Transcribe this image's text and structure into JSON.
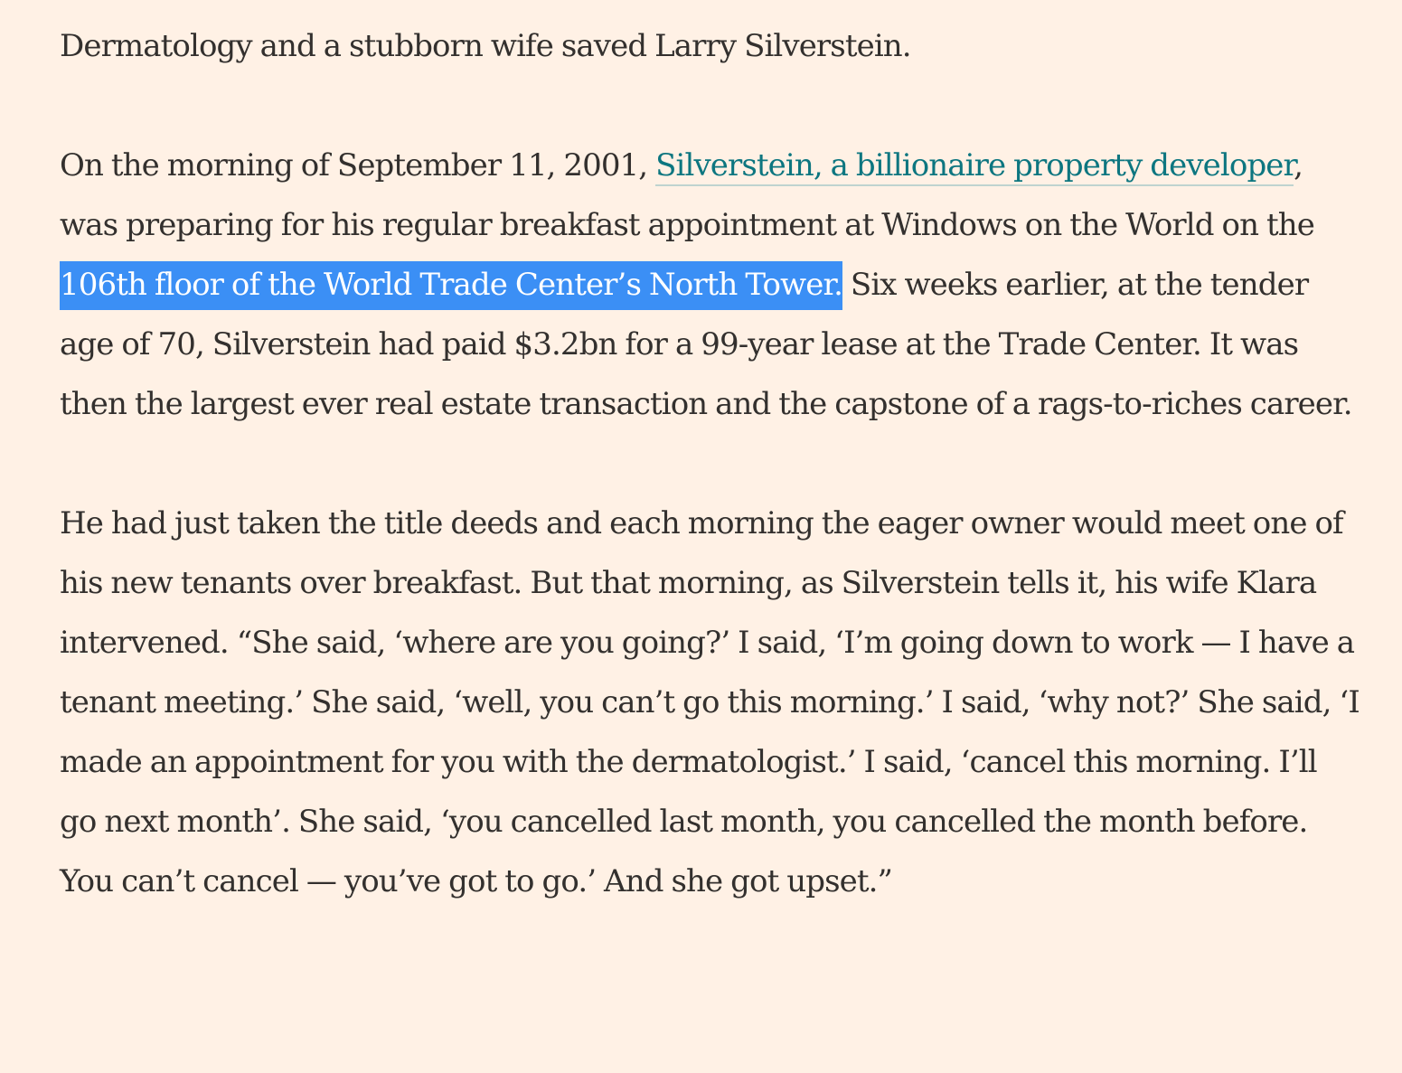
{
  "article": {
    "paragraph_1": {
      "text": "Dermatology and a stubborn wife saved Larry Silverstein."
    },
    "paragraph_2": {
      "text_before_link": "On the morning of September 11, 2001, ",
      "link_text": "Silverstein, a billionaire property developer",
      "text_after_link": ", was preparing for his regular breakfast appointment at Windows on the World on the ",
      "selected_text": "106th floor of the World Trade Center’s North Tower.",
      "text_after_selection": " Six weeks earlier, at the tender age of 70, Silverstein had paid $3.2bn for a 99-year lease at the Trade Center. It was then the largest ever real estate transaction and the capstone of a rags-to-riches career."
    },
    "paragraph_3": {
      "text": "He had just taken the title deeds and each morning the eager owner would meet one of his new tenants over breakfast. But that morning, as Silverstein tells it, his wife Klara intervened. “She said, ‘where are you going?’ I said, ‘I’m going down to work — I have a tenant meeting.’ She said, ‘well, you can’t go this morning.’ I said, ‘why not?’ She said, ‘I made an appointment for you with the dermatologist.’ I said, ‘cancel this morning. I’ll go next month’. She said, ‘you cancelled last month, you cancelled the month before. You can’t cancel — you’ve got to go.’ And she got upset.”"
    }
  },
  "colors": {
    "background": "#fff1e5",
    "body_text": "#33302e",
    "link": "#0d7680",
    "link_underline": "#bfd3cf",
    "selection_background": "#3b8ff5",
    "selection_text": "#ffffff"
  }
}
